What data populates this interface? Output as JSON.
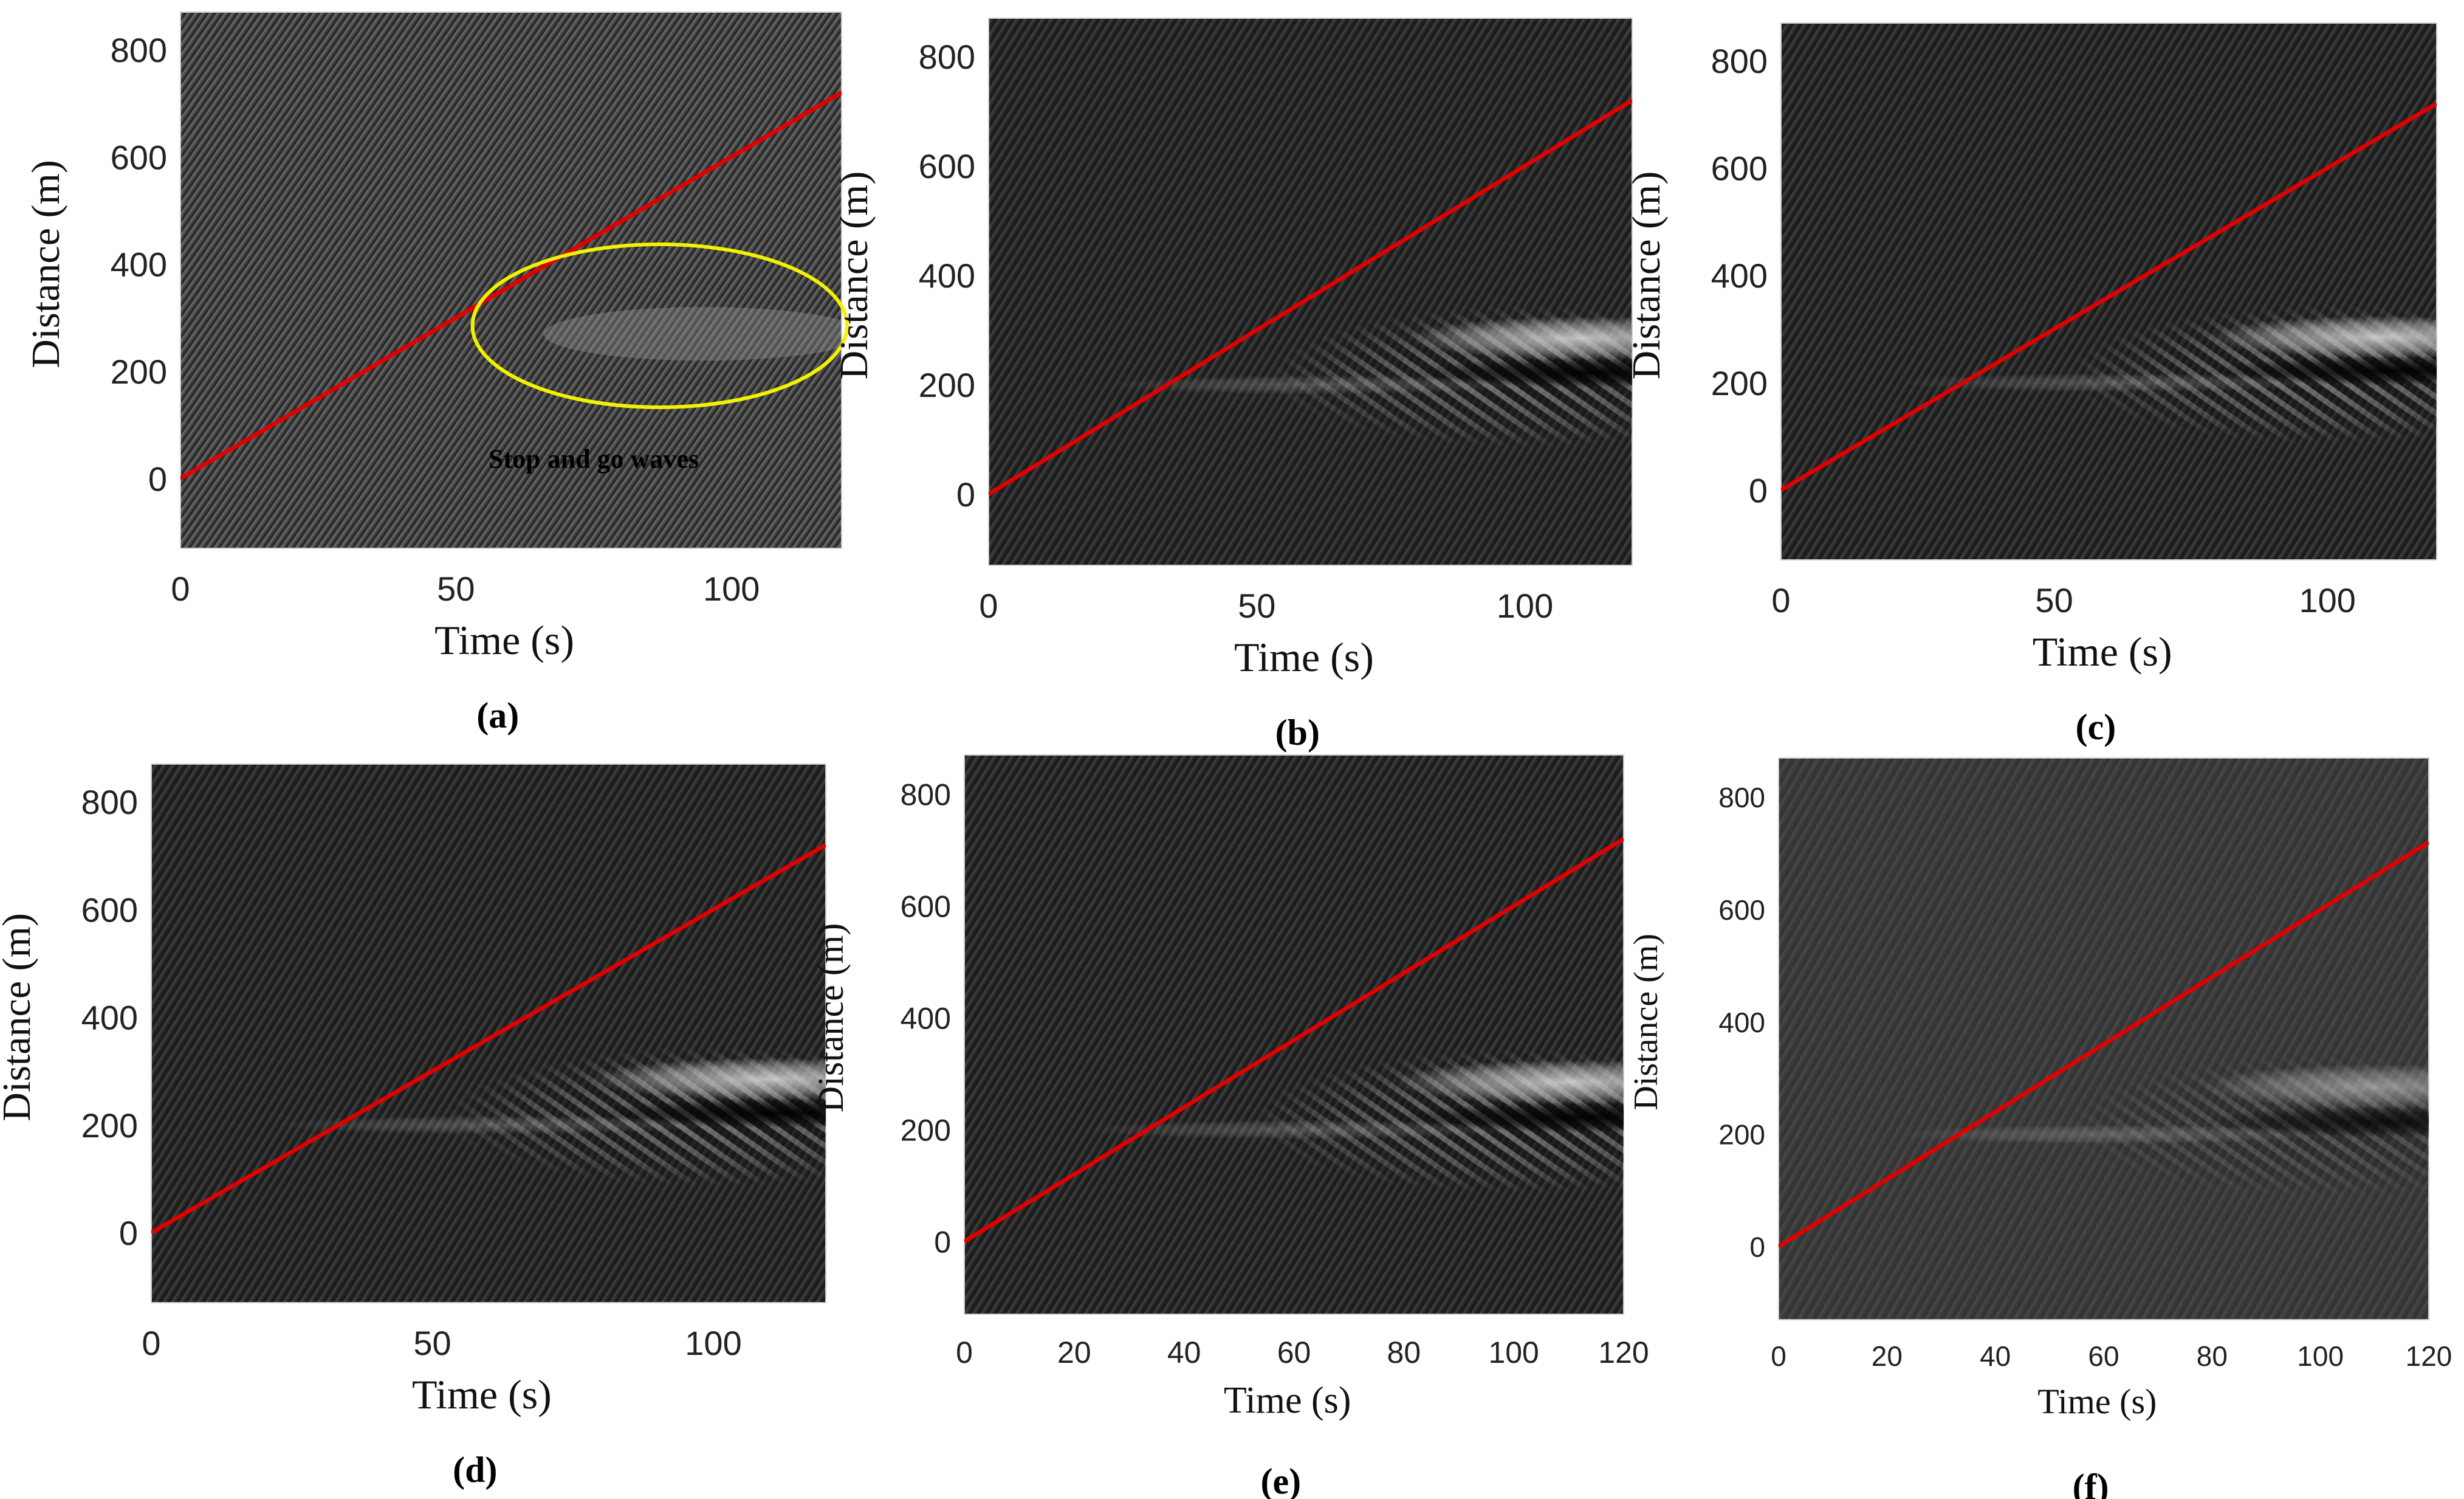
{
  "chart_data": [
    {
      "type": "heatmap",
      "caption": "(a)",
      "xlabel": "Time (s)",
      "ylabel": "Distance (m)",
      "xlim": [
        0,
        120
      ],
      "ylim": [
        -130,
        870
      ],
      "xticks": [
        "0",
        "50",
        "100"
      ],
      "yticks": [
        "0",
        "200",
        "400",
        "600",
        "800"
      ],
      "shading": "fine-diagonal",
      "trajectory": {
        "name": "vehicle trajectory",
        "color": "#e00000",
        "x": [
          0,
          120
        ],
        "y": [
          0,
          720
        ]
      },
      "annotations": [
        {
          "text": "Stop and go waves",
          "x": 75,
          "y": 20
        }
      ],
      "highlight": {
        "shape": "ellipse",
        "color": "#f2f200",
        "center": [
          87,
          285
        ],
        "radius_x": 34,
        "radius_y": 152
      }
    },
    {
      "type": "heatmap",
      "caption": "(b)",
      "xlabel": "Time (s)",
      "ylabel": "Distance (m)",
      "xlim": [
        0,
        120
      ],
      "ylim": [
        -130,
        870
      ],
      "xticks": [
        "0",
        "50",
        "100"
      ],
      "yticks": [
        "0",
        "200",
        "400",
        "600",
        "800"
      ],
      "shading": "dark-diagonal",
      "trajectory": {
        "name": "vehicle trajectory",
        "color": "#e00000",
        "x": [
          0,
          120
        ],
        "y": [
          0,
          720
        ]
      }
    },
    {
      "type": "heatmap",
      "caption": "(c)",
      "xlabel": "Time (s)",
      "ylabel": "Distance (m)",
      "xlim": [
        0,
        120
      ],
      "ylim": [
        -130,
        870
      ],
      "xticks": [
        "0",
        "50",
        "100"
      ],
      "yticks": [
        "0",
        "200",
        "400",
        "600",
        "800"
      ],
      "shading": "dark-diagonal",
      "trajectory": {
        "name": "vehicle trajectory",
        "color": "#e00000",
        "x": [
          0,
          120
        ],
        "y": [
          0,
          720
        ]
      }
    },
    {
      "type": "heatmap",
      "caption": "(d)",
      "xlabel": "Time (s)",
      "ylabel": "Distance (m)",
      "xlim": [
        0,
        120
      ],
      "ylim": [
        -130,
        870
      ],
      "xticks": [
        "0",
        "50",
        "100"
      ],
      "yticks": [
        "0",
        "200",
        "400",
        "600",
        "800"
      ],
      "shading": "dark-diagonal",
      "trajectory": {
        "name": "vehicle trajectory",
        "color": "#e00000",
        "x": [
          0,
          120
        ],
        "y": [
          0,
          720
        ]
      }
    },
    {
      "type": "heatmap",
      "caption": "(e)",
      "xlabel": "Time (s)",
      "ylabel": "Distance (m)",
      "xlim": [
        0,
        120
      ],
      "ylim": [
        -130,
        870
      ],
      "xticks": [
        "0",
        "20",
        "40",
        "60",
        "80",
        "100",
        "120"
      ],
      "yticks": [
        "0",
        "200",
        "400",
        "600",
        "800"
      ],
      "shading": "dark-diagonal",
      "trajectory": {
        "name": "vehicle trajectory",
        "color": "#e00000",
        "x": [
          0,
          120
        ],
        "y": [
          0,
          720
        ]
      }
    },
    {
      "type": "heatmap",
      "caption": "(f)",
      "xlabel": "Time (s)",
      "ylabel": "Distance (m)",
      "xlim": [
        0,
        120
      ],
      "ylim": [
        -130,
        870
      ],
      "xticks": [
        "0",
        "20",
        "40",
        "60",
        "80",
        "100",
        "120"
      ],
      "yticks": [
        "0",
        "200",
        "400",
        "600",
        "800"
      ],
      "shading": "grey-smooth",
      "trajectory": {
        "name": "vehicle trajectory",
        "color": "#e00000",
        "x": [
          0,
          120
        ],
        "y": [
          0,
          720
        ]
      }
    }
  ]
}
